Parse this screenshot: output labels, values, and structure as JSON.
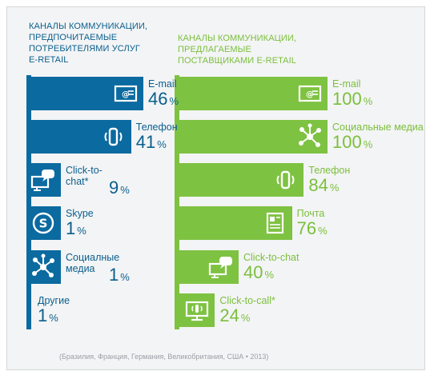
{
  "colors": {
    "consumer": "#0b6aa0",
    "retailer": "#7ec242",
    "consumer_text": "#0a5f8e",
    "retailer_text": "#7bbf3c"
  },
  "footnote": "(Бразилия, Франция, Германия, Великобритания, США • 2013)",
  "chart_data": [
    {
      "type": "bar",
      "orientation": "horizontal",
      "title": "КАНАЛЫ КОММУНИКАЦИИ,\nПРЕДПОЧИТАЕМЫЕ\nПОТРЕБИТЕЛЯМИ УСЛУГ\nE-RETAIL",
      "unit": "%",
      "color": "#0b6aa0",
      "categories": [
        "E-mail",
        "Телефон",
        "Click-to-\nchat*",
        "Skype",
        "Социалные\nмедиа",
        "Другие"
      ],
      "values": [
        46,
        41,
        9,
        1,
        1,
        1
      ],
      "icons": [
        "email-icon",
        "phone-icon",
        "chat-icon",
        "skype-icon",
        "social-icon",
        ""
      ]
    },
    {
      "type": "bar",
      "orientation": "horizontal",
      "title": "КАНАЛЫ КОММУНИКАЦИИ,\nПРЕДЛАГАЕМЫЕ\nПОСТАВЩИКАМИ E-RETAIL",
      "unit": "%",
      "color": "#7ec242",
      "categories": [
        "E-mail",
        "Социальные медиа",
        "Телефон",
        "Почта",
        "Click-to-chat",
        "Click-to-call*"
      ],
      "values": [
        100,
        100,
        84,
        76,
        40,
        24
      ],
      "icons": [
        "email-icon",
        "social-icon",
        "phone-icon",
        "mail-icon",
        "chat-icon",
        "call-icon"
      ]
    }
  ]
}
